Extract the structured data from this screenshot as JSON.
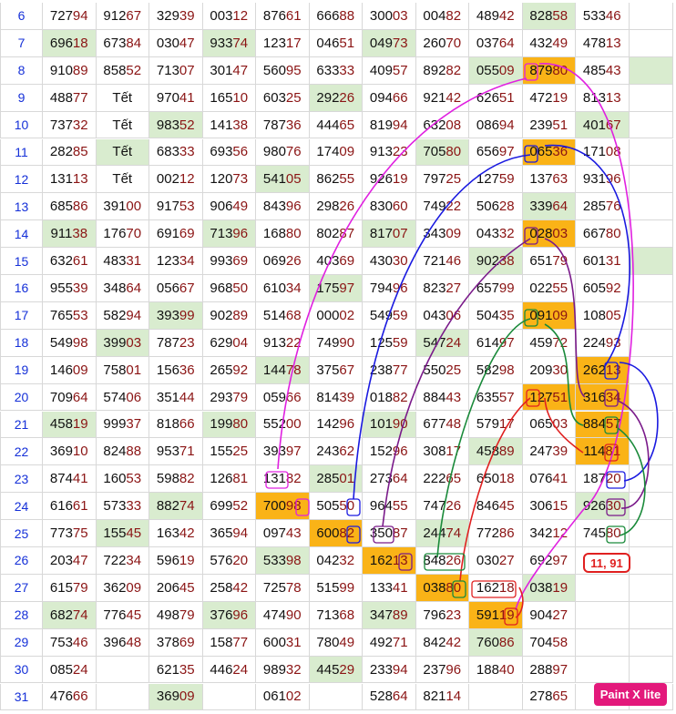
{
  "table": {
    "rows": [
      {
        "label": "6",
        "cells": [
          "72794",
          "91267",
          "32939",
          "00312",
          "87661",
          "66688",
          "30003",
          "00482",
          "48942",
          "82858",
          "53346",
          null
        ],
        "green": [
          9
        ],
        "orange": []
      },
      {
        "label": "7",
        "cells": [
          "69618",
          "67384",
          "03047",
          "93374",
          "12317",
          "04651",
          "04973",
          "26070",
          "03764",
          "43249",
          "47813",
          null
        ],
        "green": [
          0,
          3,
          6
        ],
        "orange": []
      },
      {
        "label": "8",
        "cells": [
          "91089",
          "85852",
          "71307",
          "30147",
          "56095",
          "63333",
          "40957",
          "89282",
          "05509",
          "87980",
          "48543",
          null
        ],
        "green": [
          8,
          11
        ],
        "orange": [
          9
        ]
      },
      {
        "label": "9",
        "cells": [
          "48877",
          "Tết",
          "97041",
          "16510",
          "60325",
          "29226",
          "09466",
          "92142",
          "62651",
          "47219",
          "81313",
          null
        ],
        "green": [
          5
        ],
        "orange": []
      },
      {
        "label": "10",
        "cells": [
          "73732",
          "Tết",
          "98352",
          "14138",
          "78736",
          "44465",
          "81994",
          "63208",
          "08694",
          "23951",
          "40167",
          null
        ],
        "green": [
          2,
          10
        ],
        "orange": []
      },
      {
        "label": "11",
        "cells": [
          "28285",
          "Tết",
          "68333",
          "69356",
          "98076",
          "17409",
          "91323",
          "70580",
          "65697",
          "06536",
          "17108",
          null
        ],
        "green": [
          1,
          7
        ],
        "orange": [
          9
        ]
      },
      {
        "label": "12",
        "cells": [
          "13113",
          "Tết",
          "00212",
          "12073",
          "54105",
          "86255",
          "92619",
          "79725",
          "12759",
          "13763",
          "93196",
          null
        ],
        "green": [
          4
        ],
        "orange": []
      },
      {
        "label": "13",
        "cells": [
          "68586",
          "39100",
          "91753",
          "90649",
          "84396",
          "29826",
          "83060",
          "74922",
          "50628",
          "33964",
          "28576",
          null
        ],
        "green": [
          9
        ],
        "orange": []
      },
      {
        "label": "14",
        "cells": [
          "91138",
          "17670",
          "69169",
          "71396",
          "16880",
          "80287",
          "81707",
          "34309",
          "04332",
          "02803",
          "66780",
          null
        ],
        "green": [
          0,
          3,
          6
        ],
        "orange": [
          9
        ]
      },
      {
        "label": "15",
        "cells": [
          "63261",
          "48331",
          "12334",
          "99369",
          "06926",
          "40369",
          "43030",
          "72146",
          "90238",
          "65179",
          "60131",
          null
        ],
        "green": [
          8,
          11
        ],
        "orange": []
      },
      {
        "label": "16",
        "cells": [
          "95539",
          "34864",
          "05667",
          "96850",
          "61034",
          "17597",
          "79496",
          "82327",
          "65799",
          "02255",
          "60592",
          null
        ],
        "green": [
          5
        ],
        "orange": []
      },
      {
        "label": "17",
        "cells": [
          "76553",
          "58294",
          "39399",
          "90289",
          "51468",
          "00002",
          "54959",
          "04306",
          "50435",
          "09109",
          "10805",
          null
        ],
        "green": [
          2
        ],
        "orange": [
          9
        ]
      },
      {
        "label": "18",
        "cells": [
          "54998",
          "39903",
          "78723",
          "62904",
          "91322",
          "74990",
          "12559",
          "54724",
          "61497",
          "45972",
          "22493",
          null
        ],
        "green": [
          1,
          7
        ],
        "orange": []
      },
      {
        "label": "19",
        "cells": [
          "14609",
          "75801",
          "15636",
          "26592",
          "14478",
          "37567",
          "23877",
          "55025",
          "58298",
          "20930",
          "26213",
          null
        ],
        "green": [
          4
        ],
        "orange": [
          10
        ]
      },
      {
        "label": "20",
        "cells": [
          "70964",
          "57406",
          "35144",
          "29379",
          "05966",
          "81439",
          "01882",
          "88443",
          "63557",
          "12751",
          "31634",
          null
        ],
        "green": [],
        "orange": [
          9,
          10
        ]
      },
      {
        "label": "21",
        "cells": [
          "45819",
          "99937",
          "81866",
          "19980",
          "55200",
          "14296",
          "10190",
          "67748",
          "57917",
          "06503",
          "88457",
          null
        ],
        "green": [
          0,
          3,
          6
        ],
        "orange": [
          10
        ]
      },
      {
        "label": "22",
        "cells": [
          "36910",
          "82488",
          "95371",
          "15525",
          "39397",
          "24362",
          "15296",
          "30817",
          "45889",
          "24739",
          "11481",
          null
        ],
        "green": [
          8
        ],
        "orange": [
          10
        ]
      },
      {
        "label": "23",
        "cells": [
          "87441",
          "16053",
          "59882",
          "12681",
          "13182",
          "28501",
          "27364",
          "22265",
          "65018",
          "07641",
          "18720",
          null
        ],
        "green": [
          5
        ],
        "orange": []
      },
      {
        "label": "24",
        "cells": [
          "61661",
          "57333",
          "88274",
          "69952",
          "70098",
          "50550",
          "96455",
          "74726",
          "84645",
          "30615",
          "92630",
          null
        ],
        "green": [
          2,
          10
        ],
        "orange": [
          4
        ]
      },
      {
        "label": "25",
        "cells": [
          "77375",
          "15545",
          "16342",
          "36594",
          "09743",
          "60082",
          "35087",
          "24474",
          "77286",
          "34212",
          "74580",
          null
        ],
        "green": [
          1,
          7
        ],
        "orange": [
          5
        ]
      },
      {
        "label": "26",
        "cells": [
          "20347",
          "72234",
          "59619",
          "57620",
          "53398",
          "04232",
          "16213",
          "84826",
          "03027",
          "69297",
          null,
          null
        ],
        "green": [
          4
        ],
        "orange": [
          6
        ]
      },
      {
        "label": "27",
        "cells": [
          "61579",
          "36209",
          "20645",
          "25842",
          "72578",
          "51599",
          "13341",
          "03880",
          "16218",
          "03819",
          null,
          null
        ],
        "green": [
          9
        ],
        "orange": [
          7
        ]
      },
      {
        "label": "28",
        "cells": [
          "68274",
          "77645",
          "49879",
          "37696",
          "47490",
          "71368",
          "34789",
          "79623",
          "59119",
          "90427",
          null,
          null
        ],
        "green": [
          0,
          3,
          6
        ],
        "orange": [
          8
        ]
      },
      {
        "label": "29",
        "cells": [
          "75346",
          "39648",
          "37869",
          "15877",
          "60031",
          "78049",
          "49271",
          "84242",
          "76086",
          "70458",
          null,
          null
        ],
        "green": [
          8
        ],
        "orange": []
      },
      {
        "label": "30",
        "cells": [
          "08524",
          null,
          "62135",
          "44624",
          "98932",
          "44529",
          "23394",
          "23796",
          "18840",
          "28897",
          null,
          null
        ],
        "green": [
          5
        ],
        "orange": []
      },
      {
        "label": "31",
        "cells": [
          "47666",
          null,
          "36909",
          null,
          "06102",
          null,
          "52864",
          "82114",
          null,
          "27865",
          null,
          null
        ],
        "green": [
          2
        ],
        "orange": []
      }
    ]
  },
  "annotation": "11, 91",
  "watermark": "Paint X lite"
}
